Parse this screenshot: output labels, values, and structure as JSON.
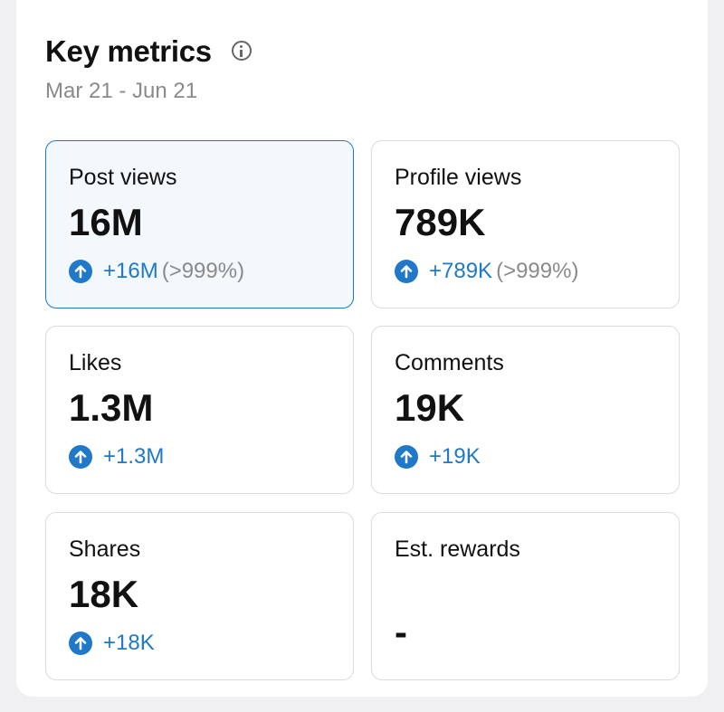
{
  "header": {
    "title": "Key metrics",
    "date_range": "Mar 21 - Jun 21"
  },
  "metrics": [
    {
      "label": "Post views",
      "value": "16M",
      "change": "+16M",
      "change_pct": "(>999%)"
    },
    {
      "label": "Profile views",
      "value": "789K",
      "change": "+789K",
      "change_pct": "(>999%)"
    },
    {
      "label": "Likes",
      "value": "1.3M",
      "change": "+1.3M"
    },
    {
      "label": "Comments",
      "value": "19K",
      "change": "+19K"
    },
    {
      "label": "Shares",
      "value": "18K",
      "change": "+18K"
    },
    {
      "label": "Est. rewards",
      "value": "-"
    }
  ]
}
